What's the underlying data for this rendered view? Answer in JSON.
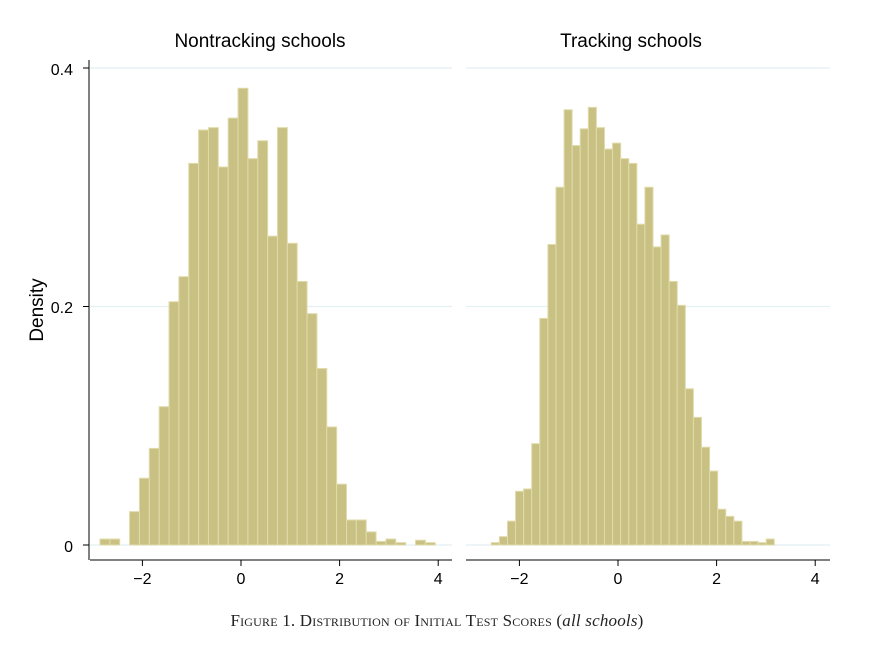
{
  "figure": {
    "caption_main": "Figure 1. Distribution of Initial Test Scores",
    "caption_open": " (",
    "caption_italic": "all schools",
    "caption_close": ")"
  },
  "colors": {
    "bar_fill": "#c9c183",
    "bar_edge": "#e0dbaa",
    "grid": "#e4eff3",
    "axis": "#000000"
  },
  "chart_data": [
    {
      "type": "bar",
      "subtype": "histogram",
      "title": "Nontracking schools",
      "ylabel": "Density",
      "xlabel": "",
      "xlim": [
        -3.1,
        4.2
      ],
      "ylim": [
        0,
        0.4
      ],
      "xticks": [
        -2,
        0,
        2,
        4
      ],
      "xtick_labels": [
        "−2",
        "0",
        "2",
        "4"
      ],
      "yticks": [
        0,
        0.2,
        0.4
      ],
      "ytick_labels": [
        "0",
        "0.2",
        "0.4"
      ],
      "grid": true,
      "bin_start": -2.86,
      "bin_width": 0.2,
      "values": [
        0.005,
        0.005,
        0,
        0.028,
        0.056,
        0.081,
        0.116,
        0.204,
        0.225,
        0.32,
        0.348,
        0.35,
        0.317,
        0.358,
        0.383,
        0.324,
        0.339,
        0.259,
        0.35,
        0.253,
        0.221,
        0.194,
        0.148,
        0.099,
        0.051,
        0.021,
        0.021,
        0.011,
        0.003,
        0.005,
        0.002,
        0,
        0.004,
        0.002
      ]
    },
    {
      "type": "bar",
      "subtype": "histogram",
      "title": "Tracking schools",
      "xlabel": "",
      "xlim": [
        -3.1,
        4.2
      ],
      "ylim": [
        0,
        0.4
      ],
      "xticks": [
        -2,
        0,
        2,
        4
      ],
      "xtick_labels": [
        "−2",
        "0",
        "2",
        "4"
      ],
      "yticks": [
        0,
        0.2,
        0.4
      ],
      "grid": true,
      "bin_start": -2.57,
      "bin_width": 0.164,
      "values": [
        0.002,
        0.007,
        0.02,
        0.045,
        0.047,
        0.085,
        0.19,
        0.252,
        0.3,
        0.365,
        0.335,
        0.349,
        0.367,
        0.35,
        0.332,
        0.337,
        0.324,
        0.32,
        0.269,
        0.3,
        0.25,
        0.26,
        0.221,
        0.201,
        0.131,
        0.107,
        0.082,
        0.062,
        0.03,
        0.024,
        0.02,
        0.003,
        0.003,
        0.002,
        0.005
      ]
    }
  ]
}
